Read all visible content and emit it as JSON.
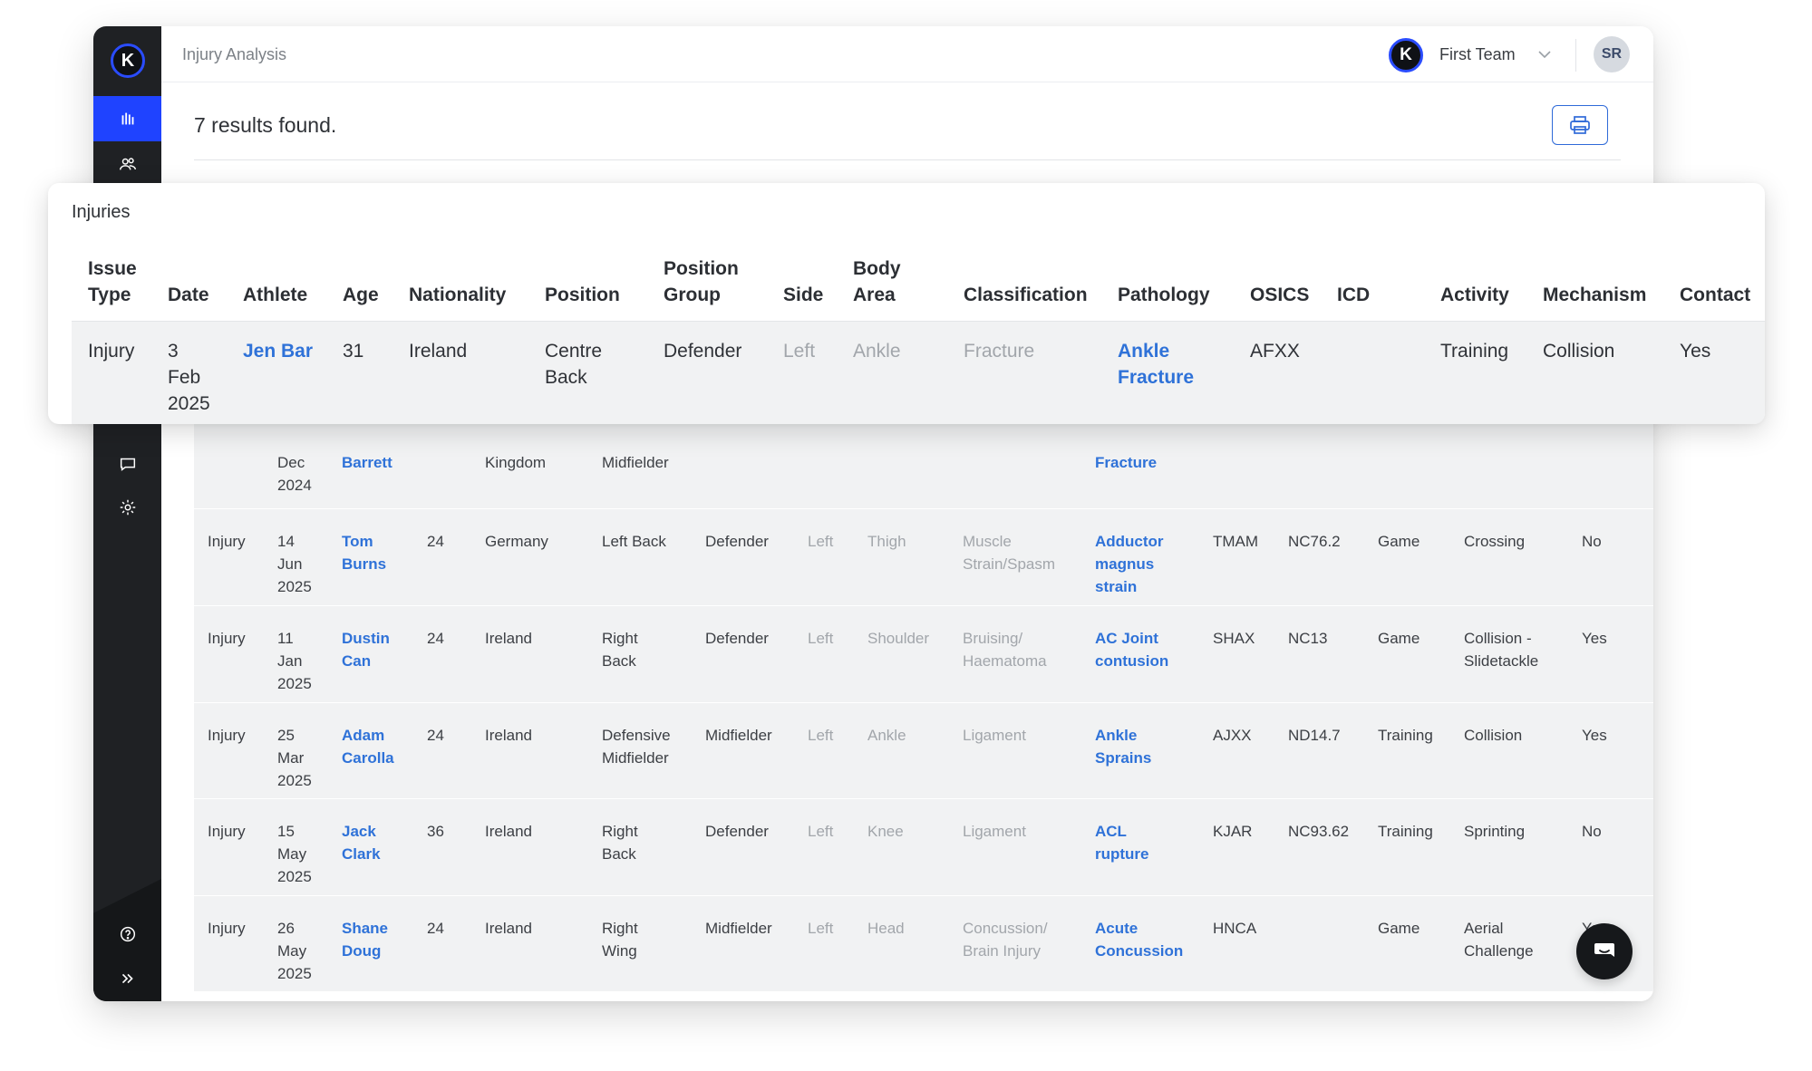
{
  "app": {
    "logo_letter": "K",
    "page_title": "Injury Analysis",
    "team_logo_letter": "K",
    "team_name": "First Team",
    "user_initials": "SR"
  },
  "sidebar": {
    "items": [
      {
        "icon": "bar-chart-icon",
        "active": true
      },
      {
        "icon": "users-icon",
        "active": false
      },
      {
        "icon": "chat-icon",
        "active": false
      },
      {
        "icon": "gear-icon",
        "active": false
      },
      {
        "icon": "help-icon",
        "active": false
      },
      {
        "icon": "expand-icon",
        "active": false
      }
    ]
  },
  "results": {
    "text": "7 results found."
  },
  "toolbar": {
    "print_icon": "printer-icon"
  },
  "card": {
    "title": "Injuries",
    "headers": [
      {
        "line1": "Issue",
        "line2": "Type"
      },
      {
        "line1": "",
        "line2": "Date"
      },
      {
        "line1": "",
        "line2": "Athlete"
      },
      {
        "line1": "",
        "line2": "Age"
      },
      {
        "line1": "",
        "line2": "Nationality"
      },
      {
        "line1": "",
        "line2": "Position"
      },
      {
        "line1": "Position",
        "line2": "Group"
      },
      {
        "line1": "",
        "line2": "Side"
      },
      {
        "line1": "Body",
        "line2": "Area"
      },
      {
        "line1": "",
        "line2": "Classification"
      },
      {
        "line1": "",
        "line2": "Pathology"
      },
      {
        "line1": "",
        "line2": "OSICS"
      },
      {
        "line1": "",
        "line2": "ICD"
      },
      {
        "line1": "",
        "line2": "Activity"
      },
      {
        "line1": "",
        "line2": "Mechanism"
      },
      {
        "line1": "",
        "line2": "Contact"
      }
    ],
    "row": {
      "issue_type": "Injury",
      "date": [
        "3",
        "Feb",
        "2025"
      ],
      "athlete": [
        "Jen Bar"
      ],
      "age": "31",
      "nationality": [
        "Ireland"
      ],
      "position": [
        "Centre",
        "Back"
      ],
      "position_group": "Defender",
      "side": "Left",
      "body_area": "Ankle",
      "classification": [
        "Fracture"
      ],
      "pathology": [
        "Ankle",
        "Fracture"
      ],
      "osics": "AFXX",
      "icd": "",
      "activity": "Training",
      "mechanism": [
        "Collision"
      ],
      "contact": "Yes"
    }
  },
  "table": {
    "partial_row": {
      "date": [
        "Dec",
        "2024"
      ],
      "athlete": [
        "Barrett"
      ],
      "nationality": [
        "Kingdom"
      ],
      "position": [
        "Midfielder"
      ],
      "pathology": [
        "Fracture"
      ]
    },
    "rows": [
      {
        "issue_type": "Injury",
        "date": [
          "14",
          "Jun",
          "2025"
        ],
        "athlete": [
          "Tom",
          "Burns"
        ],
        "age": "24",
        "nationality": [
          "Germany"
        ],
        "position": [
          "Left Back"
        ],
        "position_group": "Defender",
        "side": "Left",
        "body_area": "Thigh",
        "classification": [
          "Muscle",
          "Strain/Spasm"
        ],
        "pathology": [
          "Adductor",
          "magnus",
          "strain"
        ],
        "osics": "TMAM",
        "icd": "NC76.2",
        "activity": "Game",
        "mechanism": [
          "Crossing"
        ],
        "contact": "No"
      },
      {
        "issue_type": "Injury",
        "date": [
          "11",
          "Jan",
          "2025"
        ],
        "athlete": [
          "Dustin",
          "Can"
        ],
        "age": "24",
        "nationality": [
          "Ireland"
        ],
        "position": [
          "Right",
          "Back"
        ],
        "position_group": "Defender",
        "side": "Left",
        "body_area": "Shoulder",
        "classification": [
          "Bruising/",
          "Haematoma"
        ],
        "pathology": [
          "AC Joint",
          "contusion"
        ],
        "osics": "SHAX",
        "icd": "NC13",
        "activity": "Game",
        "mechanism": [
          "Collision -",
          "Slidetackle"
        ],
        "contact": "Yes"
      },
      {
        "issue_type": "Injury",
        "date": [
          "25",
          "Mar",
          "2025"
        ],
        "athlete": [
          "Adam",
          "Carolla"
        ],
        "age": "24",
        "nationality": [
          "Ireland"
        ],
        "position": [
          "Defensive",
          "Midfielder"
        ],
        "position_group": "Midfielder",
        "side": "Left",
        "body_area": "Ankle",
        "classification": [
          "Ligament"
        ],
        "pathology": [
          "Ankle",
          "Sprains"
        ],
        "osics": "AJXX",
        "icd": "ND14.7",
        "activity": "Training",
        "mechanism": [
          "Collision"
        ],
        "contact": "Yes"
      },
      {
        "issue_type": "Injury",
        "date": [
          "15",
          "May",
          "2025"
        ],
        "athlete": [
          "Jack",
          "Clark"
        ],
        "age": "36",
        "nationality": [
          "Ireland"
        ],
        "position": [
          "Right",
          "Back"
        ],
        "position_group": "Defender",
        "side": "Left",
        "body_area": "Knee",
        "classification": [
          "Ligament"
        ],
        "pathology": [
          "ACL",
          "rupture"
        ],
        "osics": "KJAR",
        "icd": "NC93.62",
        "activity": "Training",
        "mechanism": [
          "Sprinting"
        ],
        "contact": "No"
      },
      {
        "issue_type": "Injury",
        "date": [
          "26",
          "May",
          "2025"
        ],
        "athlete": [
          "Shane",
          "Doug"
        ],
        "age": "24",
        "nationality": [
          "Ireland"
        ],
        "position": [
          "Right",
          "Wing"
        ],
        "position_group": "Midfielder",
        "side": "Left",
        "body_area": "Head",
        "classification": [
          "Concussion/",
          "Brain Injury"
        ],
        "pathology": [
          "Acute",
          "Concussion"
        ],
        "osics": "HNCA",
        "icd": "",
        "activity": "Game",
        "mechanism": [
          "Aerial",
          "Challenge"
        ],
        "contact": "Yes"
      }
    ]
  },
  "chat": {
    "icon": "chat-bubble-icon"
  },
  "colors": {
    "accent": "#1f43ff",
    "link": "#2f72d8",
    "sidebar": "#1f2124",
    "row_bg": "#f1f2f3",
    "muted_text": "#a2a6ab"
  }
}
